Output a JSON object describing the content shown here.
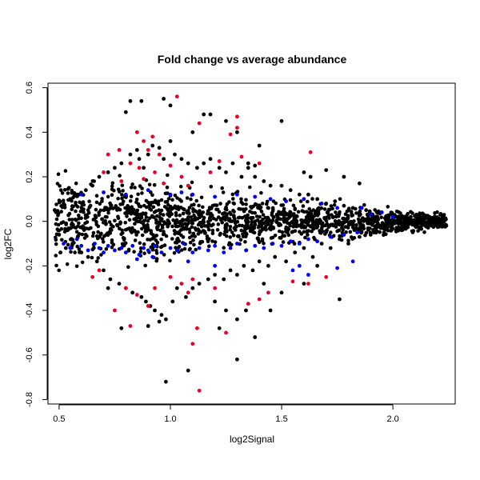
{
  "chart_data": {
    "type": "scatter",
    "title": "Fold change vs average abundance",
    "xlabel": "log2Signal",
    "ylabel": "log2FC",
    "xlim": [
      0.45,
      2.28
    ],
    "ylim": [
      -0.82,
      0.62
    ],
    "x_ticks": [
      0.5,
      1.0,
      1.5,
      2.0
    ],
    "x_tick_labels": [
      "0.5",
      "1.0",
      "1.5",
      "2.0"
    ],
    "y_ticks": [
      -0.8,
      -0.6,
      -0.4,
      -0.2,
      0.0,
      0.2,
      0.4,
      0.6
    ],
    "y_tick_labels": [
      "-0.8",
      "-0.6",
      "-0.4",
      "-0.2",
      "0.0",
      "0.2",
      "0.4",
      "0.6"
    ],
    "grid": false,
    "legend": "none",
    "colors": {
      "black": "#000000",
      "blue": "#0000ff",
      "red": "#e8002a"
    },
    "series": [
      {
        "color": "black",
        "points": [
          [
            0.48,
            0.05
          ],
          [
            0.5,
            -0.06
          ],
          [
            0.52,
            0.08
          ],
          [
            0.53,
            -0.12
          ],
          [
            0.55,
            0.1
          ],
          [
            0.56,
            -0.1
          ],
          [
            0.58,
            0.12
          ],
          [
            0.6,
            -0.14
          ],
          [
            0.62,
            0.14
          ],
          [
            0.63,
            -0.16
          ],
          [
            0.65,
            0.16
          ],
          [
            0.67,
            -0.18
          ],
          [
            0.68,
            0.2
          ],
          [
            0.7,
            -0.22
          ],
          [
            0.72,
            0.22
          ],
          [
            0.73,
            -0.26
          ],
          [
            0.75,
            0.24
          ],
          [
            0.77,
            -0.28
          ],
          [
            0.78,
            0.26
          ],
          [
            0.8,
            -0.3
          ],
          [
            0.82,
            0.3
          ],
          [
            0.83,
            -0.32
          ],
          [
            0.85,
            0.32
          ],
          [
            0.86,
            0.28
          ],
          [
            0.87,
            -0.34
          ],
          [
            0.88,
            0.24
          ],
          [
            0.89,
            -0.36
          ],
          [
            0.9,
            0.3
          ],
          [
            0.91,
            -0.38
          ],
          [
            0.92,
            0.34
          ],
          [
            0.93,
            -0.4
          ],
          [
            0.95,
            0.33
          ],
          [
            0.96,
            -0.42
          ],
          [
            0.97,
            0.28
          ],
          [
            0.98,
            -0.44
          ],
          [
            1.0,
            0.36
          ],
          [
            1.01,
            -0.36
          ],
          [
            1.02,
            0.3
          ],
          [
            1.03,
            -0.3
          ],
          [
            1.05,
            0.28
          ],
          [
            1.07,
            -0.34
          ],
          [
            1.08,
            0.26
          ],
          [
            1.1,
            -0.3
          ],
          [
            1.12,
            0.24
          ],
          [
            1.13,
            -0.28
          ],
          [
            1.15,
            0.26
          ],
          [
            1.17,
            -0.26
          ],
          [
            1.18,
            0.28
          ],
          [
            1.2,
            -0.24
          ],
          [
            1.22,
            0.24
          ],
          [
            1.24,
            -0.26
          ],
          [
            1.25,
            0.22
          ],
          [
            1.27,
            -0.22
          ],
          [
            1.28,
            0.26
          ],
          [
            1.3,
            -0.24
          ],
          [
            1.32,
            0.2
          ],
          [
            1.33,
            -0.2
          ],
          [
            1.35,
            0.24
          ],
          [
            1.37,
            -0.22
          ],
          [
            1.38,
            0.2
          ],
          [
            1.4,
            -0.18
          ],
          [
            1.42,
            0.18
          ],
          [
            1.44,
            -0.2
          ],
          [
            1.45,
            0.16
          ],
          [
            1.47,
            -0.16
          ],
          [
            1.5,
            0.16
          ],
          [
            1.52,
            -0.18
          ],
          [
            1.54,
            0.14
          ],
          [
            1.56,
            -0.14
          ],
          [
            1.58,
            0.12
          ],
          [
            1.6,
            -0.12
          ],
          [
            1.62,
            0.12
          ],
          [
            1.64,
            -0.16
          ],
          [
            1.66,
            0.1
          ],
          [
            1.68,
            -0.1
          ],
          [
            1.7,
            0.08
          ],
          [
            1.72,
            -0.12
          ],
          [
            1.74,
            0.09
          ],
          [
            1.76,
            -0.08
          ],
          [
            1.78,
            0.07
          ],
          [
            1.8,
            -0.1
          ],
          [
            1.82,
            0.06
          ],
          [
            1.85,
            -0.07
          ],
          [
            1.88,
            0.05
          ],
          [
            1.9,
            -0.06
          ],
          [
            1.93,
            0.04
          ],
          [
            1.96,
            -0.05
          ],
          [
            2.0,
            0.03
          ],
          [
            2.04,
            -0.04
          ],
          [
            2.08,
            0.02
          ],
          [
            2.12,
            -0.03
          ],
          [
            2.16,
            0.01
          ],
          [
            2.2,
            -0.02
          ],
          [
            2.24,
            -0.02
          ],
          [
            0.82,
            0.54
          ],
          [
            0.87,
            0.54
          ],
          [
            0.8,
            0.49
          ],
          [
            0.97,
            0.55
          ],
          [
            1.0,
            0.52
          ],
          [
            1.15,
            0.48
          ],
          [
            1.18,
            0.48
          ],
          [
            1.25,
            0.45
          ],
          [
            1.5,
            0.45
          ],
          [
            1.3,
            0.4
          ],
          [
            1.1,
            0.4
          ],
          [
            1.4,
            0.34
          ],
          [
            1.38,
            0.25
          ],
          [
            1.6,
            0.22
          ],
          [
            1.7,
            0.23
          ],
          [
            1.63,
            0.2
          ],
          [
            1.78,
            0.2
          ],
          [
            1.85,
            0.17
          ],
          [
            1.25,
            -0.4
          ],
          [
            1.2,
            -0.36
          ],
          [
            1.34,
            -0.4
          ],
          [
            1.3,
            -0.44
          ],
          [
            1.38,
            -0.52
          ],
          [
            1.45,
            -0.4
          ],
          [
            1.5,
            -0.32
          ],
          [
            1.6,
            -0.28
          ],
          [
            1.66,
            -0.2
          ],
          [
            1.76,
            -0.35
          ],
          [
            0.98,
            -0.72
          ],
          [
            1.08,
            -0.67
          ],
          [
            1.3,
            -0.62
          ],
          [
            1.22,
            -0.48
          ],
          [
            0.95,
            -0.45
          ],
          [
            0.9,
            -0.47
          ],
          [
            0.78,
            -0.48
          ],
          [
            0.72,
            -0.3
          ],
          [
            1.35,
            0.26
          ],
          [
            1.42,
            -0.28
          ]
        ]
      },
      {
        "color": "blue",
        "points": [
          [
            0.52,
            -0.1
          ],
          [
            0.55,
            -0.12
          ],
          [
            0.58,
            -0.08
          ],
          [
            0.6,
            -0.11
          ],
          [
            0.63,
            -0.13
          ],
          [
            0.66,
            -0.1
          ],
          [
            0.68,
            -0.12
          ],
          [
            0.7,
            -0.14
          ],
          [
            0.72,
            -0.11
          ],
          [
            0.75,
            -0.13
          ],
          [
            0.78,
            -0.12
          ],
          [
            0.8,
            -0.14
          ],
          [
            0.83,
            -0.11
          ],
          [
            0.86,
            -0.15
          ],
          [
            0.88,
            -0.12
          ],
          [
            0.9,
            -0.13
          ],
          [
            0.93,
            -0.11
          ],
          [
            0.96,
            -0.14
          ],
          [
            1.0,
            -0.12
          ],
          [
            1.03,
            -0.13
          ],
          [
            1.06,
            -0.1
          ],
          [
            1.1,
            -0.14
          ],
          [
            1.13,
            -0.12
          ],
          [
            1.17,
            -0.13
          ],
          [
            1.2,
            -0.11
          ],
          [
            1.24,
            -0.14
          ],
          [
            1.27,
            -0.12
          ],
          [
            1.3,
            -0.1
          ],
          [
            1.34,
            -0.13
          ],
          [
            1.38,
            -0.11
          ],
          [
            1.42,
            -0.12
          ],
          [
            1.46,
            -0.1
          ],
          [
            1.5,
            -0.11
          ],
          [
            1.54,
            -0.09
          ],
          [
            1.58,
            -0.1
          ],
          [
            1.62,
            -0.08
          ],
          [
            1.66,
            -0.09
          ],
          [
            1.72,
            -0.07
          ],
          [
            1.78,
            -0.06
          ],
          [
            1.84,
            -0.05
          ],
          [
            0.6,
            0.12
          ],
          [
            0.7,
            0.13
          ],
          [
            0.8,
            0.12
          ],
          [
            0.9,
            0.14
          ],
          [
            1.0,
            0.12
          ],
          [
            1.05,
            0.13
          ],
          [
            1.1,
            0.12
          ],
          [
            1.2,
            0.11
          ],
          [
            1.3,
            0.12
          ],
          [
            1.38,
            0.11
          ],
          [
            1.45,
            0.1
          ],
          [
            1.52,
            0.09
          ],
          [
            1.6,
            0.1
          ],
          [
            1.68,
            0.08
          ],
          [
            1.75,
            0.06
          ],
          [
            1.86,
            0.06
          ],
          [
            1.95,
            0.04
          ],
          [
            2.0,
            0.02
          ],
          [
            1.9,
            0.03
          ],
          [
            1.58,
            -0.2
          ],
          [
            1.55,
            -0.22
          ],
          [
            1.62,
            -0.24
          ],
          [
            1.75,
            -0.21
          ],
          [
            1.82,
            -0.18
          ],
          [
            1.08,
            -0.18
          ],
          [
            1.2,
            -0.2
          ],
          [
            0.92,
            -0.16
          ],
          [
            0.85,
            -0.17
          ]
        ]
      },
      {
        "color": "red",
        "points": [
          [
            1.03,
            0.56
          ],
          [
            1.3,
            0.47
          ],
          [
            1.3,
            0.42
          ],
          [
            1.13,
            0.44
          ],
          [
            1.27,
            0.39
          ],
          [
            0.77,
            0.32
          ],
          [
            0.72,
            0.3
          ],
          [
            0.85,
            0.4
          ],
          [
            0.88,
            0.36
          ],
          [
            0.92,
            0.38
          ],
          [
            0.9,
            0.32
          ],
          [
            0.95,
            0.3
          ],
          [
            0.82,
            0.26
          ],
          [
            0.86,
            0.24
          ],
          [
            0.93,
            0.22
          ],
          [
            1.0,
            0.25
          ],
          [
            1.05,
            0.2
          ],
          [
            1.18,
            0.22
          ],
          [
            1.22,
            0.27
          ],
          [
            1.32,
            0.29
          ],
          [
            1.4,
            0.26
          ],
          [
            1.63,
            0.31
          ],
          [
            0.78,
            0.18
          ],
          [
            0.88,
            0.19
          ],
          [
            0.97,
            0.17
          ],
          [
            1.08,
            0.16
          ],
          [
            0.7,
            0.22
          ],
          [
            0.75,
            -0.4
          ],
          [
            0.8,
            -0.3
          ],
          [
            0.85,
            -0.33
          ],
          [
            0.9,
            -0.38
          ],
          [
            0.93,
            -0.3
          ],
          [
            1.0,
            -0.25
          ],
          [
            1.05,
            -0.28
          ],
          [
            1.08,
            -0.32
          ],
          [
            1.1,
            -0.26
          ],
          [
            0.82,
            -0.47
          ],
          [
            1.13,
            -0.76
          ],
          [
            1.1,
            -0.55
          ],
          [
            1.12,
            -0.48
          ],
          [
            1.25,
            -0.5
          ],
          [
            1.4,
            -0.35
          ],
          [
            1.44,
            -0.32
          ],
          [
            1.62,
            -0.28
          ],
          [
            1.55,
            -0.27
          ],
          [
            0.65,
            -0.25
          ],
          [
            0.68,
            -0.22
          ],
          [
            1.2,
            -0.3
          ],
          [
            1.35,
            -0.37
          ],
          [
            1.7,
            -0.25
          ]
        ]
      }
    ]
  }
}
